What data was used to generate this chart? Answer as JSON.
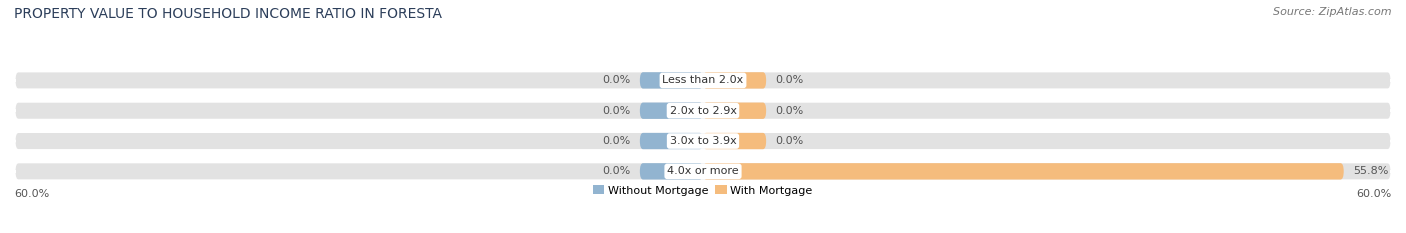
{
  "title": "PROPERTY VALUE TO HOUSEHOLD INCOME RATIO IN FORESTA",
  "source": "Source: ZipAtlas.com",
  "categories": [
    "Less than 2.0x",
    "2.0x to 2.9x",
    "3.0x to 3.9x",
    "4.0x or more"
  ],
  "without_mortgage": [
    0.0,
    0.0,
    0.0,
    0.0
  ],
  "with_mortgage": [
    0.0,
    0.0,
    0.0,
    55.8
  ],
  "xlim": [
    -60,
    60
  ],
  "x_left_label": "60.0%",
  "x_right_label": "60.0%",
  "color_without": "#92b4d0",
  "color_with": "#f5bc7d",
  "color_bar_bg": "#e2e2e2",
  "legend_without": "Without Mortgage",
  "legend_with": "With Mortgage",
  "title_fontsize": 10,
  "source_fontsize": 8,
  "bar_height": 0.62,
  "background_color": "#ffffff",
  "label_fontsize": 8,
  "cat_fontsize": 8
}
